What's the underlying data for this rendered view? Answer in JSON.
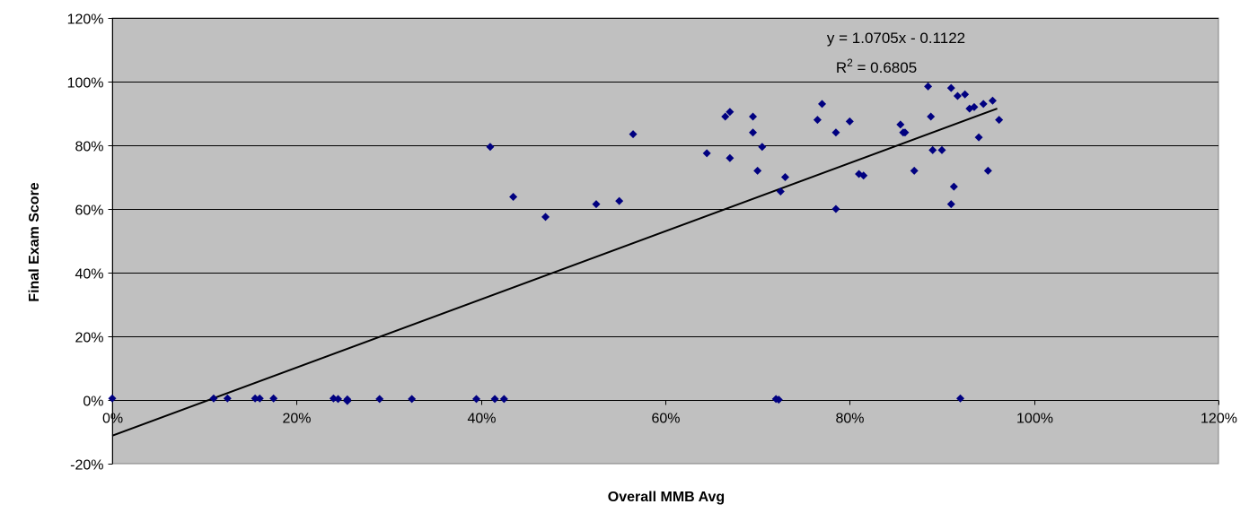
{
  "chart_data": {
    "type": "scatter",
    "xlabel": "Overall MMB Avg",
    "ylabel": "Final Exam Score",
    "xlim": [
      0,
      120
    ],
    "ylim": [
      -20,
      120
    ],
    "x_ticks": [
      0,
      20,
      40,
      60,
      80,
      100,
      120
    ],
    "y_ticks": [
      -20,
      0,
      20,
      40,
      60,
      80,
      100,
      120
    ],
    "x_tick_labels": [
      "0%",
      "20%",
      "40%",
      "60%",
      "80%",
      "100%",
      "120%"
    ],
    "y_tick_labels": [
      "-20%",
      "0%",
      "20%",
      "40%",
      "60%",
      "80%",
      "100%",
      "120%"
    ],
    "grid": "horizontal major gridlines",
    "plot_background": "#c0c0c0",
    "marker_color": "#000080",
    "trendline": {
      "equation": "y = 1.0705x - 0.1122",
      "r_squared_prefix": "R",
      "r_squared_exp": "2",
      "r_squared_value": " = 0.6805",
      "slope": 1.0705,
      "intercept": -11.22,
      "x_range": [
        0,
        96
      ]
    },
    "points": [
      [
        0,
        0.5
      ],
      [
        11,
        0.5
      ],
      [
        12.5,
        0.5
      ],
      [
        15.5,
        0.5
      ],
      [
        16,
        0.5
      ],
      [
        17.5,
        0.5
      ],
      [
        24,
        0.5
      ],
      [
        24.5,
        0.3
      ],
      [
        25.5,
        0.2
      ],
      [
        25.5,
        -0.3
      ],
      [
        29,
        0.3
      ],
      [
        32.5,
        0.3
      ],
      [
        39.5,
        0.3
      ],
      [
        41.5,
        0.3
      ],
      [
        42.5,
        0.3
      ],
      [
        72,
        0.3
      ],
      [
        72.3,
        0.1
      ],
      [
        92,
        0.5
      ],
      [
        41,
        79.5
      ],
      [
        43.5,
        63.8
      ],
      [
        47,
        57.5
      ],
      [
        52.5,
        61.5
      ],
      [
        55,
        62.5
      ],
      [
        56.5,
        83.5
      ],
      [
        64.5,
        77.5
      ],
      [
        66.5,
        89
      ],
      [
        67,
        90.5
      ],
      [
        67,
        76
      ],
      [
        69.5,
        89
      ],
      [
        69.5,
        84
      ],
      [
        70,
        72
      ],
      [
        70.5,
        79.5
      ],
      [
        72.5,
        65.5
      ],
      [
        73,
        70
      ],
      [
        76.5,
        88
      ],
      [
        77,
        93
      ],
      [
        78.5,
        84
      ],
      [
        78.5,
        60
      ],
      [
        80,
        87.5
      ],
      [
        81,
        71
      ],
      [
        81.5,
        70.5
      ],
      [
        85.5,
        86.5
      ],
      [
        85.8,
        84
      ],
      [
        86,
        84
      ],
      [
        87,
        72
      ],
      [
        88.5,
        98.5
      ],
      [
        88.8,
        89
      ],
      [
        89,
        78.5
      ],
      [
        90,
        78.5
      ],
      [
        91,
        98
      ],
      [
        91,
        61.5
      ],
      [
        91.3,
        67
      ],
      [
        91.7,
        95.5
      ],
      [
        92.5,
        96
      ],
      [
        93,
        91.5
      ],
      [
        93.5,
        92
      ],
      [
        94,
        82.5
      ],
      [
        94.5,
        93
      ],
      [
        95,
        72
      ],
      [
        95.5,
        94
      ],
      [
        96.2,
        88
      ]
    ]
  }
}
